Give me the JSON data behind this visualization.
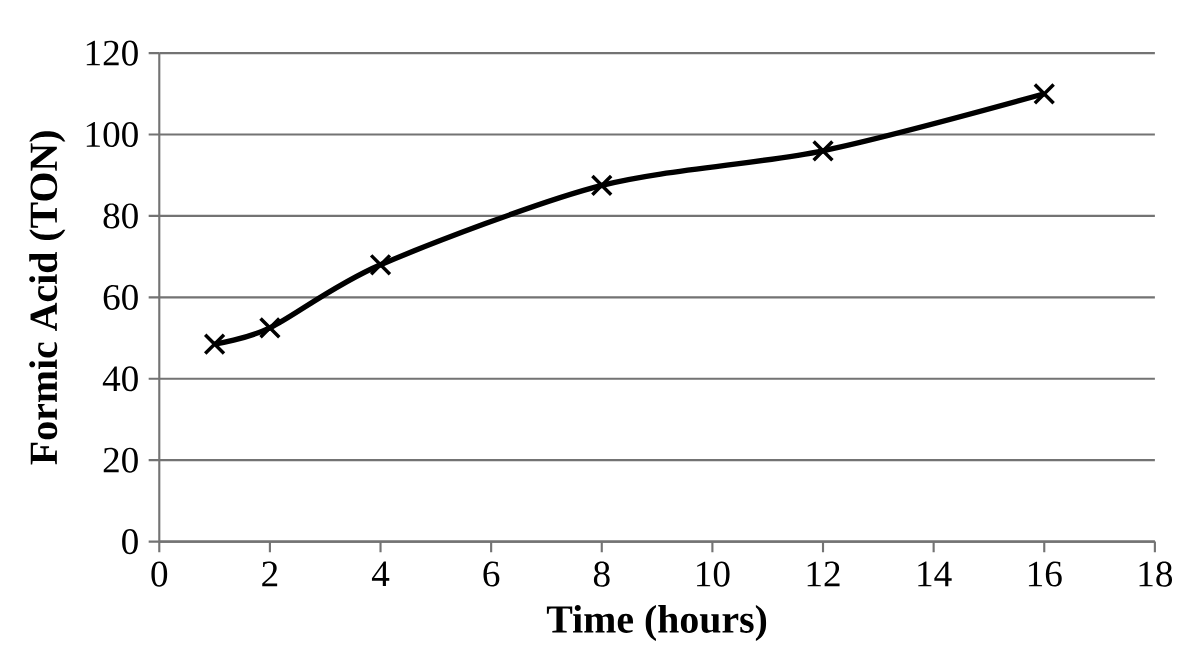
{
  "chart_data": {
    "type": "line",
    "xlabel": "Time (hours)",
    "ylabel": "Formic Acid (TON)",
    "x": [
      1,
      2,
      4,
      8,
      12,
      16
    ],
    "series": [
      {
        "color": "#000000",
        "values": [
          48.5,
          52.5,
          68,
          87.5,
          96,
          110
        ]
      }
    ],
    "xlim": [
      0,
      18
    ],
    "xticks": [
      0,
      2,
      4,
      6,
      8,
      10,
      12,
      14,
      16,
      18
    ],
    "ylim": [
      0,
      120
    ],
    "yticks": [
      0,
      20,
      40,
      60,
      80,
      100,
      120
    ],
    "grid": "y",
    "marker": "cross",
    "line_style": "solid"
  }
}
